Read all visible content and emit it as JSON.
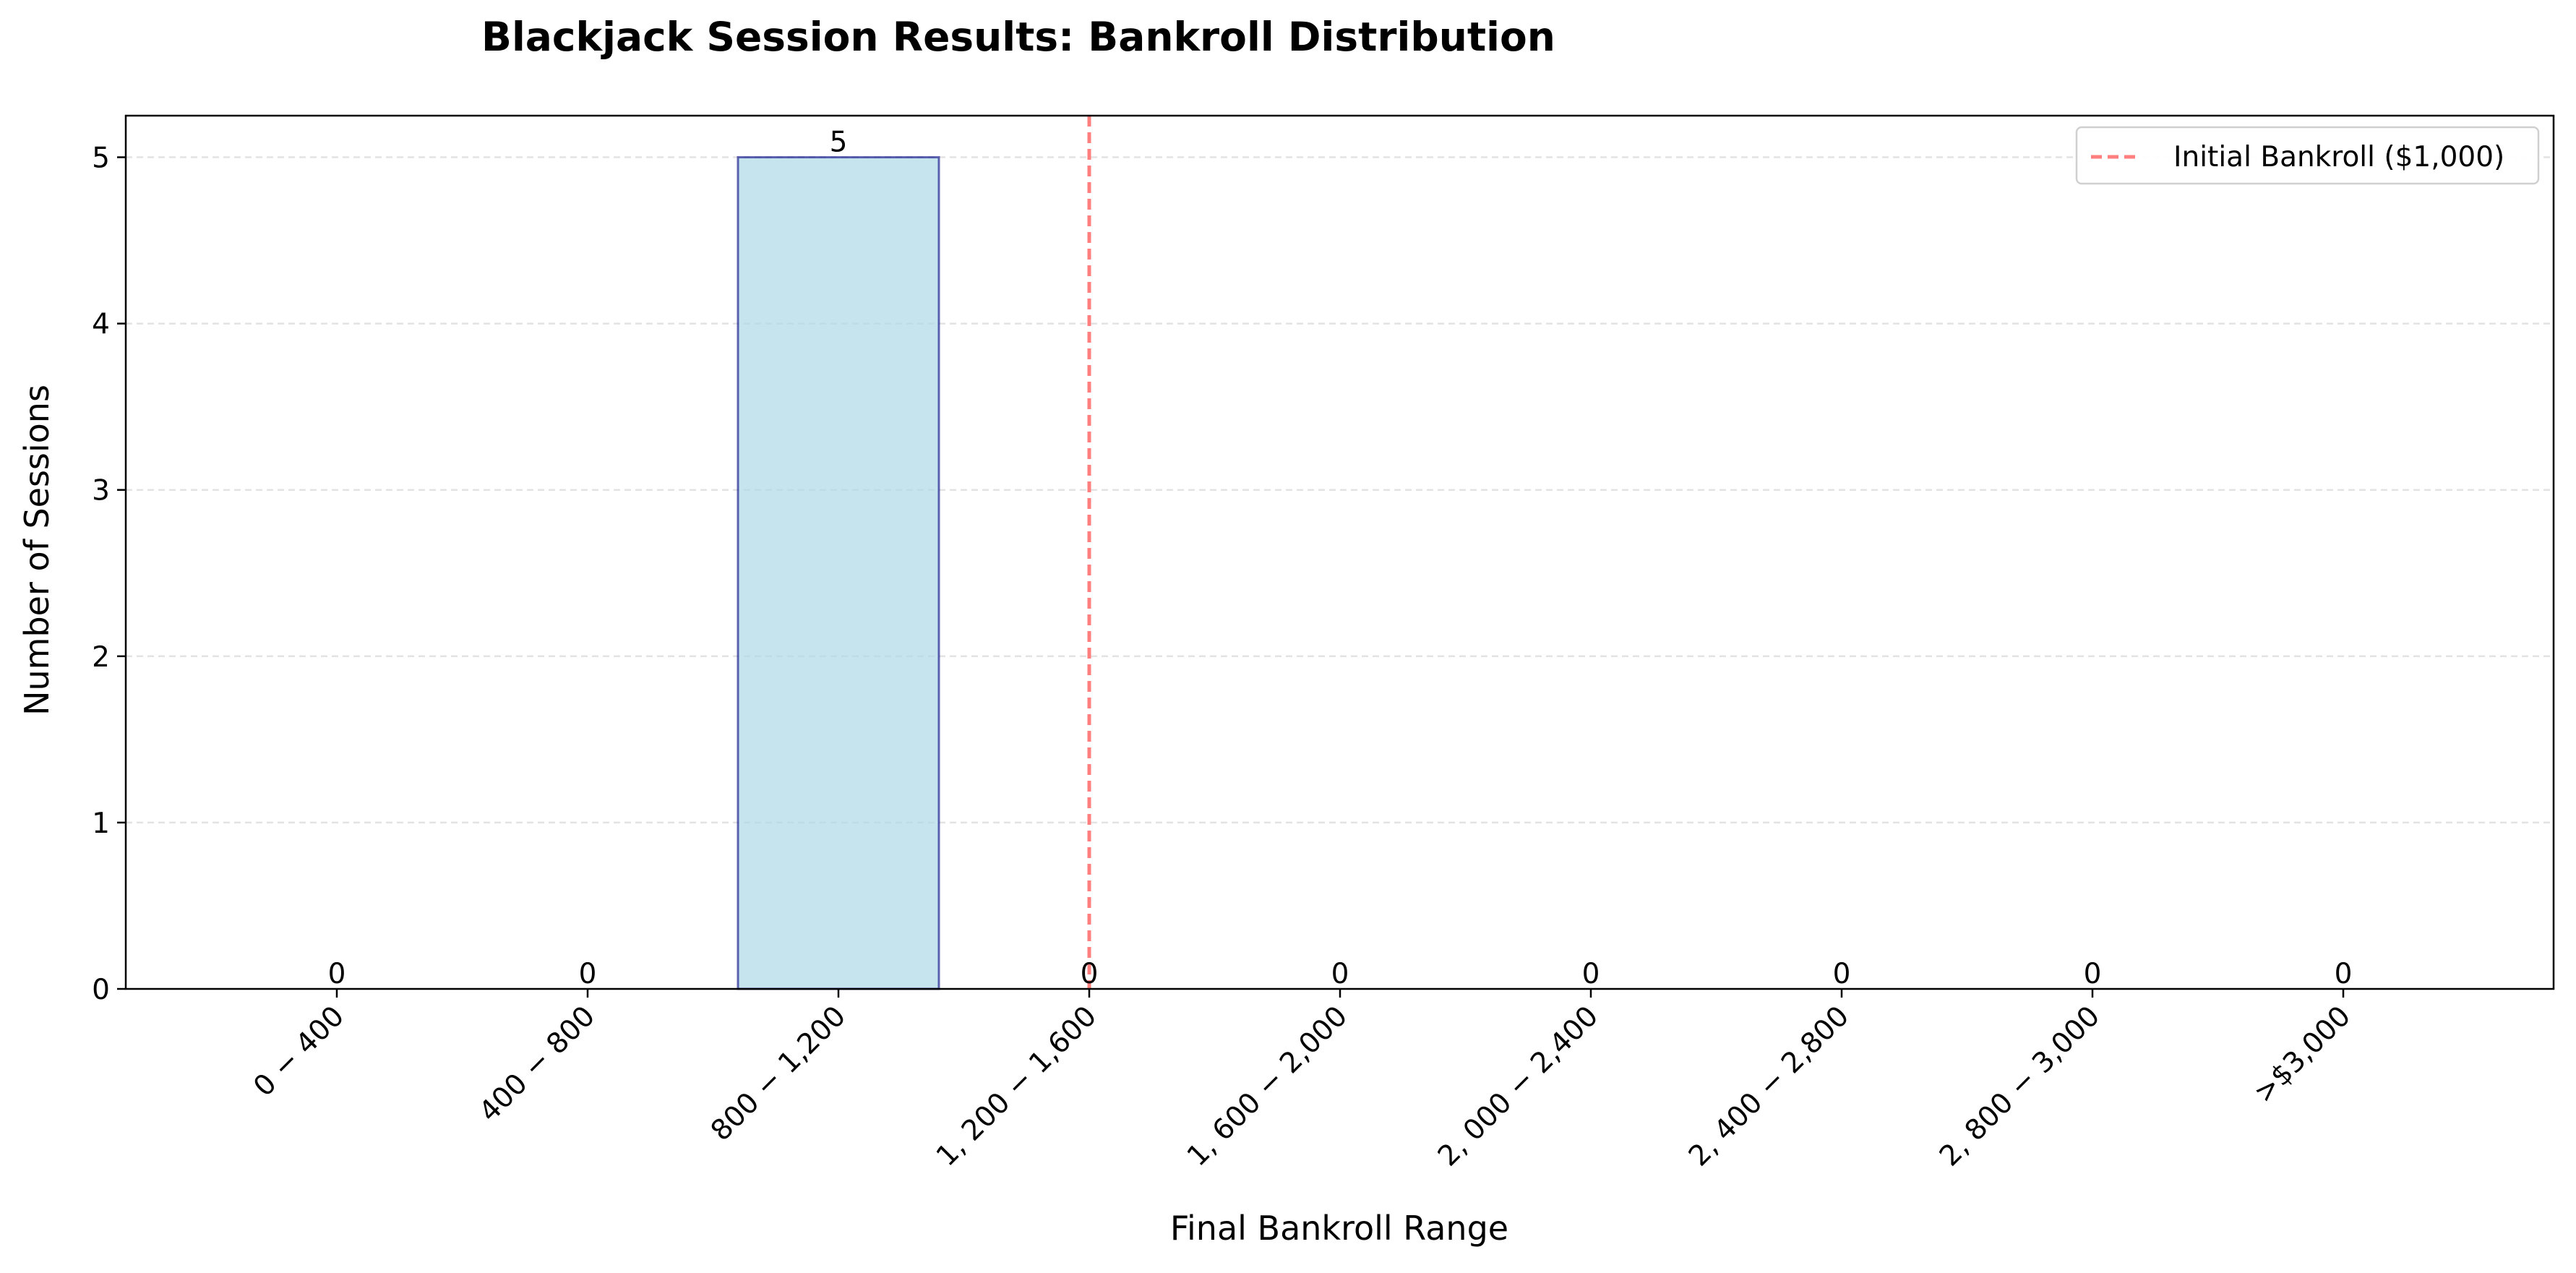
{
  "chart_data": {
    "type": "bar",
    "title": "Blackjack Session Results: Bankroll Distribution",
    "xlabel": "Final Bankroll Range",
    "ylabel": "Number of Sessions",
    "categories": [
      "0 − 400",
      "400 − 800",
      "800 − 1,200",
      "1, 200 − 1,600",
      "1, 600 − 2,000",
      "2, 000 − 2,400",
      "2, 400 − 2,800",
      "2, 800 − 3,000",
      ">$3,000"
    ],
    "values": [
      0,
      0,
      5,
      0,
      0,
      0,
      0,
      0,
      0
    ],
    "data_labels": [
      "0",
      "0",
      "5",
      "0",
      "0",
      "0",
      "0",
      "0",
      "0"
    ],
    "ylim": [
      0,
      5.25
    ],
    "yticks": [
      0,
      1,
      2,
      3,
      4,
      5
    ],
    "ytick_labels": [
      "0",
      "1",
      "2",
      "3",
      "4",
      "5"
    ],
    "grid": "y-dashed",
    "bar_color": "#add8e6",
    "bar_edge_color": "#000080",
    "reference_line": {
      "label": "Initial Bankroll ($1,000)",
      "category_position": 3,
      "color": "#ff7f7f",
      "style": "dashed"
    },
    "legend": {
      "placement": "top-right",
      "entries": [
        "Initial Bankroll ($1,000)"
      ]
    }
  }
}
